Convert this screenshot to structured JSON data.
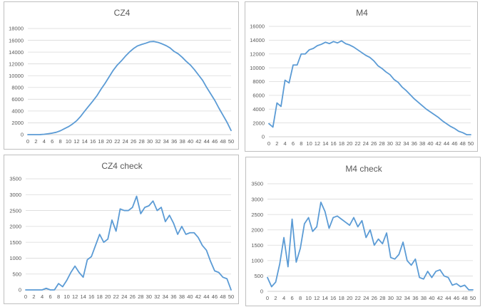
{
  "colors": {
    "series": "#5b9bd5",
    "grid": "#d9d9d9",
    "text": "#595959",
    "border": "#bfbfbf"
  },
  "chart_data": [
    {
      "type": "line",
      "title": "CZ4",
      "x": [
        0,
        1,
        2,
        3,
        4,
        5,
        6,
        7,
        8,
        9,
        10,
        11,
        12,
        13,
        14,
        15,
        16,
        17,
        18,
        19,
        20,
        21,
        22,
        23,
        24,
        25,
        26,
        27,
        28,
        29,
        30,
        31,
        32,
        33,
        34,
        35,
        36,
        37,
        38,
        39,
        40,
        41,
        42,
        43,
        44,
        45,
        46,
        47,
        48,
        49,
        50
      ],
      "xticks": [
        0,
        2,
        4,
        6,
        8,
        10,
        12,
        14,
        16,
        18,
        20,
        22,
        24,
        26,
        28,
        30,
        32,
        34,
        36,
        38,
        40,
        42,
        44,
        46,
        48,
        50
      ],
      "yticks": [
        0,
        2000,
        4000,
        6000,
        8000,
        10000,
        12000,
        14000,
        16000,
        18000
      ],
      "ylim": [
        0,
        18000
      ],
      "series": [
        {
          "values": [
            0,
            0,
            0,
            10,
            60,
            150,
            250,
            400,
            650,
            1000,
            1350,
            1800,
            2350,
            3100,
            4000,
            4850,
            5700,
            6600,
            7700,
            8700,
            9800,
            10900,
            11800,
            12500,
            13300,
            14000,
            14600,
            15050,
            15300,
            15500,
            15750,
            15800,
            15650,
            15400,
            15100,
            14700,
            14100,
            13700,
            13100,
            12400,
            11800,
            11000,
            10100,
            9200,
            8000,
            6900,
            5800,
            4500,
            3300,
            2100,
            700
          ]
        }
      ]
    },
    {
      "type": "line",
      "title": "M4",
      "x": [
        0,
        1,
        2,
        3,
        4,
        5,
        6,
        7,
        8,
        9,
        10,
        11,
        12,
        13,
        14,
        15,
        16,
        17,
        18,
        19,
        20,
        21,
        22,
        23,
        24,
        25,
        26,
        27,
        28,
        29,
        30,
        31,
        32,
        33,
        34,
        35,
        36,
        37,
        38,
        39,
        40,
        41,
        42,
        43,
        44,
        45,
        46,
        47,
        48,
        49,
        50
      ],
      "xticks": [
        0,
        2,
        4,
        6,
        8,
        10,
        12,
        14,
        16,
        18,
        20,
        22,
        24,
        26,
        28,
        30,
        32,
        34,
        36,
        38,
        40,
        42,
        44,
        46,
        48,
        50
      ],
      "yticks": [
        0,
        2000,
        4000,
        6000,
        8000,
        10000,
        12000,
        14000,
        16000
      ],
      "ylim": [
        0,
        16000
      ],
      "series": [
        {
          "values": [
            1900,
            1400,
            4900,
            4400,
            8200,
            7800,
            10400,
            10400,
            12000,
            12000,
            12600,
            12800,
            13200,
            13400,
            13700,
            13500,
            13800,
            13600,
            13900,
            13500,
            13300,
            13000,
            12600,
            12200,
            11800,
            11500,
            11000,
            10300,
            9900,
            9400,
            9000,
            8300,
            7900,
            7200,
            6700,
            6100,
            5500,
            5000,
            4500,
            4000,
            3600,
            3200,
            2800,
            2300,
            1900,
            1500,
            1200,
            800,
            600,
            300,
            300
          ]
        }
      ]
    },
    {
      "type": "line",
      "title": "CZ4 check",
      "x": [
        0,
        1,
        2,
        3,
        4,
        5,
        6,
        7,
        8,
        9,
        10,
        11,
        12,
        13,
        14,
        15,
        16,
        17,
        18,
        19,
        20,
        21,
        22,
        23,
        24,
        25,
        26,
        27,
        28,
        29,
        30,
        31,
        32,
        33,
        34,
        35,
        36,
        37,
        38,
        39,
        40,
        41,
        42,
        43,
        44,
        45,
        46,
        47,
        48,
        49,
        50
      ],
      "xticks": [
        0,
        2,
        4,
        6,
        8,
        10,
        12,
        14,
        16,
        18,
        20,
        22,
        24,
        26,
        28,
        30,
        32,
        34,
        36,
        38,
        40,
        42,
        44,
        46,
        48,
        50
      ],
      "yticks": [
        0,
        500,
        1000,
        1500,
        2000,
        2500,
        3000,
        3500
      ],
      "ylim": [
        0,
        3500
      ],
      "series": [
        {
          "values": [
            0,
            0,
            0,
            0,
            0,
            50,
            0,
            0,
            200,
            100,
            300,
            550,
            750,
            550,
            400,
            950,
            1050,
            1400,
            1750,
            1500,
            1600,
            2200,
            1850,
            2550,
            2500,
            2500,
            2600,
            2950,
            2400,
            2600,
            2650,
            2800,
            2500,
            2600,
            2150,
            2350,
            2100,
            1750,
            2000,
            1750,
            1800,
            1800,
            1650,
            1400,
            1250,
            900,
            600,
            550,
            400,
            350,
            0
          ]
        }
      ]
    },
    {
      "type": "line",
      "title": "M4 check",
      "x": [
        0,
        1,
        2,
        3,
        4,
        5,
        6,
        7,
        8,
        9,
        10,
        11,
        12,
        13,
        14,
        15,
        16,
        17,
        18,
        19,
        20,
        21,
        22,
        23,
        24,
        25,
        26,
        27,
        28,
        29,
        30,
        31,
        32,
        33,
        34,
        35,
        36,
        37,
        38,
        39,
        40,
        41,
        42,
        43,
        44,
        45,
        46,
        47,
        48,
        49,
        50
      ],
      "xticks": [
        0,
        2,
        4,
        6,
        8,
        10,
        12,
        14,
        16,
        18,
        20,
        22,
        24,
        26,
        28,
        30,
        32,
        34,
        36,
        38,
        40,
        42,
        44,
        46,
        48,
        50
      ],
      "yticks": [
        0,
        500,
        1000,
        1500,
        2000,
        2500,
        3000,
        3500
      ],
      "ylim": [
        0,
        3500
      ],
      "series": [
        {
          "values": [
            450,
            150,
            300,
            900,
            1750,
            800,
            2350,
            950,
            1400,
            2200,
            2400,
            1950,
            2100,
            2900,
            2600,
            2050,
            2400,
            2450,
            2350,
            2250,
            2150,
            2400,
            2100,
            2300,
            1750,
            2000,
            1500,
            1700,
            1550,
            1900,
            1100,
            1050,
            1200,
            1600,
            1000,
            850,
            1050,
            450,
            400,
            650,
            450,
            650,
            700,
            500,
            450,
            200,
            250,
            150,
            200,
            50,
            50
          ]
        }
      ]
    }
  ]
}
